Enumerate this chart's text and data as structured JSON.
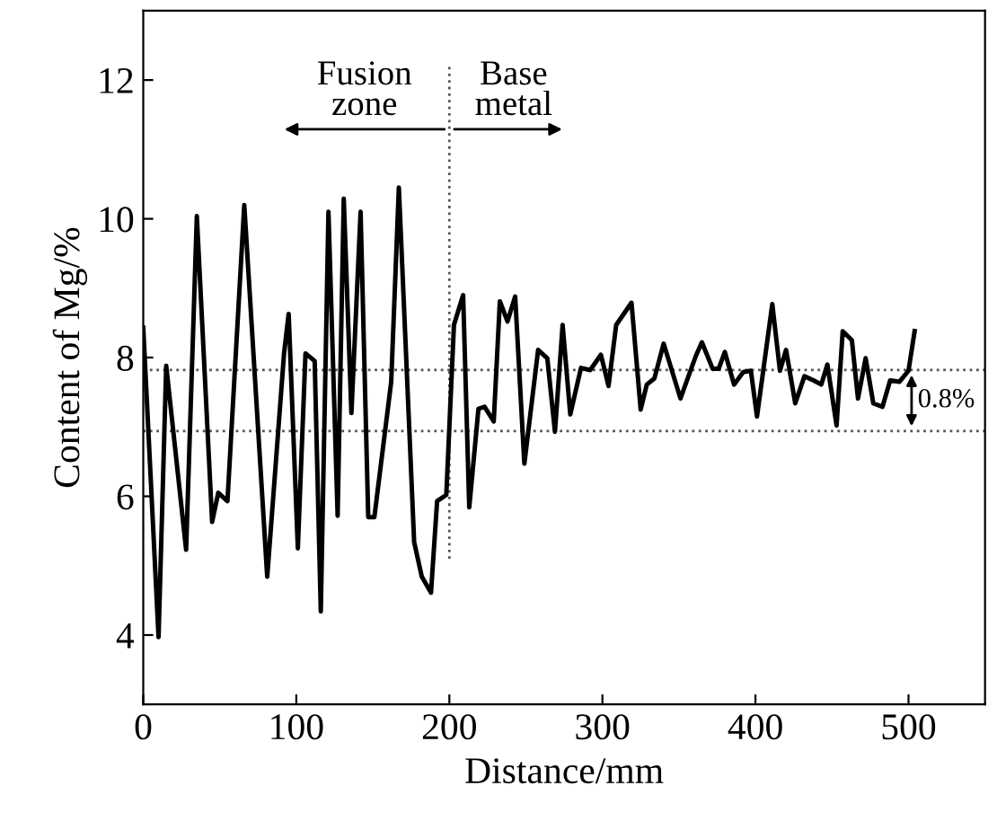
{
  "chart_data": {
    "type": "line",
    "xlabel": "Distance/mm",
    "ylabel": "Content of Mg/%",
    "xlim": [
      0,
      550
    ],
    "ylim": [
      3,
      13
    ],
    "xticks": [
      0,
      100,
      200,
      300,
      400,
      500
    ],
    "yticks": [
      4,
      6,
      8,
      10,
      12
    ],
    "grid": false,
    "legend": false,
    "marker": "none",
    "line_style": "solid",
    "series": [
      {
        "color": "#000000",
        "x": [
          0,
          10,
          15,
          28,
          35,
          45,
          49,
          55,
          66,
          81,
          92,
          95,
          101,
          106,
          112,
          116,
          121,
          127,
          131,
          136,
          142,
          147,
          151,
          162,
          167,
          177,
          182,
          188,
          192,
          198,
          203,
          209,
          213,
          219,
          223,
          229,
          233,
          238,
          243,
          249,
          258,
          264,
          269,
          274,
          279,
          286,
          292,
          299,
          304,
          309,
          319,
          325,
          329,
          334,
          340,
          351,
          361,
          365,
          372,
          376,
          380,
          386,
          392,
          397,
          401,
          411,
          416,
          420,
          426,
          432,
          438,
          443,
          447,
          453,
          457,
          463,
          467,
          472,
          477,
          483,
          488,
          494,
          500,
          504
        ],
        "values": [
          8.43,
          3.97,
          7.88,
          5.23,
          10.04,
          5.63,
          6.05,
          5.93,
          10.2,
          4.84,
          8.06,
          8.63,
          5.25,
          8.06,
          7.95,
          4.34,
          10.1,
          5.72,
          10.29,
          7.2,
          10.1,
          5.7,
          5.7,
          7.65,
          10.45,
          5.34,
          4.84,
          4.61,
          5.93,
          6.02,
          8.47,
          8.9,
          5.84,
          7.26,
          7.29,
          7.08,
          8.81,
          8.52,
          8.88,
          6.47,
          8.11,
          7.99,
          6.93,
          8.47,
          7.18,
          7.85,
          7.82,
          8.04,
          7.59,
          8.47,
          8.79,
          7.25,
          7.61,
          7.7,
          8.2,
          7.41,
          8.02,
          8.22,
          7.84,
          7.84,
          8.08,
          7.61,
          7.79,
          7.81,
          7.15,
          8.77,
          7.81,
          8.11,
          7.34,
          7.73,
          7.67,
          7.61,
          7.9,
          7.02,
          8.38,
          8.25,
          7.41,
          7.99,
          7.34,
          7.29,
          7.67,
          7.65,
          7.81,
          8.38
        ]
      }
    ],
    "ref_lines": [
      {
        "axis": "y",
        "value": 7.82,
        "line_style": "dotted",
        "color": "#555555"
      },
      {
        "axis": "y",
        "value": 6.94,
        "line_style": "dotted",
        "color": "#555555"
      },
      {
        "axis": "x",
        "value": 200,
        "line_style": "dotted",
        "color": "#555555"
      }
    ],
    "annotations": [
      "Fusion\nzone",
      "Base\nmetal",
      "0.8%"
    ]
  }
}
